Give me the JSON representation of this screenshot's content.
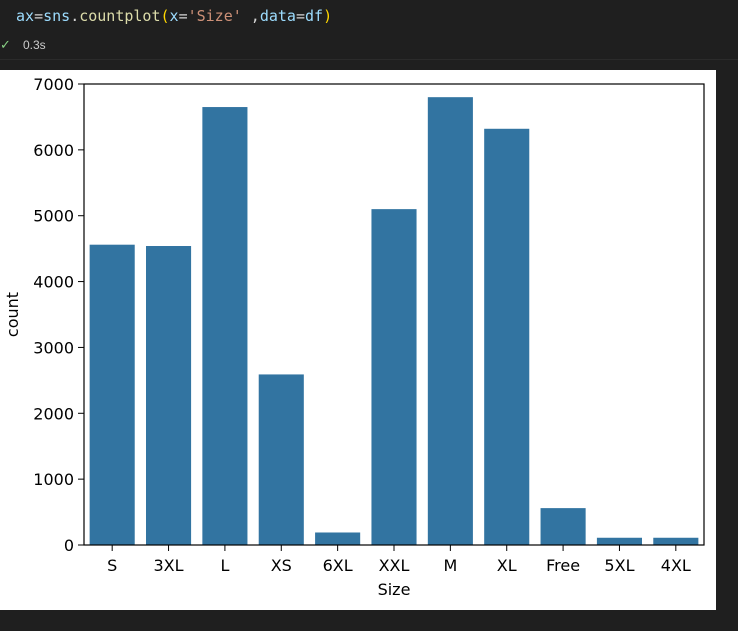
{
  "cell": {
    "code_tokens": [
      {
        "text": "ax",
        "kind": "var"
      },
      {
        "text": "=",
        "kind": "op"
      },
      {
        "text": "sns",
        "kind": "var"
      },
      {
        "text": ".",
        "kind": "op"
      },
      {
        "text": "countplot",
        "kind": "fn"
      },
      {
        "text": "(",
        "kind": "paren"
      },
      {
        "text": "x",
        "kind": "var"
      },
      {
        "text": "=",
        "kind": "op"
      },
      {
        "text": "'Size'",
        "kind": "str"
      },
      {
        "text": " ,",
        "kind": "op"
      },
      {
        "text": "data",
        "kind": "var"
      },
      {
        "text": "=",
        "kind": "op"
      },
      {
        "text": "df",
        "kind": "var"
      },
      {
        "text": ")",
        "kind": "paren"
      }
    ],
    "status_icon": "check-icon",
    "exec_time": "0.3s"
  },
  "chart_data": {
    "type": "bar",
    "categories": [
      "S",
      "3XL",
      "L",
      "XS",
      "6XL",
      "XXL",
      "M",
      "XL",
      "Free",
      "5XL",
      "4XL"
    ],
    "values": [
      4560,
      4540,
      6650,
      2590,
      190,
      5100,
      6800,
      6320,
      560,
      110,
      110
    ],
    "xlabel": "Size",
    "ylabel": "count",
    "ylim": [
      0,
      7000
    ],
    "yticks": [
      0,
      1000,
      2000,
      3000,
      4000,
      5000,
      6000,
      7000
    ],
    "ytick_labels": [
      "0",
      "1000",
      "2000",
      "3000",
      "4000",
      "5000",
      "6000",
      "7000"
    ],
    "bar_color": "#3274a1",
    "grid": false
  }
}
